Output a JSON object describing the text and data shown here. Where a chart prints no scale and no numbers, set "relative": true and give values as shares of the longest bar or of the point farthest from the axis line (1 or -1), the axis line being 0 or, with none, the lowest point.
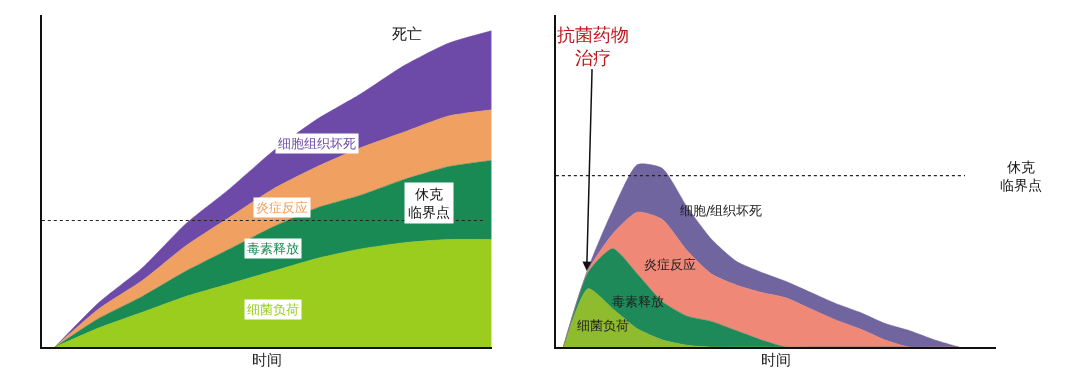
{
  "chart_data": [
    {
      "type": "area",
      "stacked": true,
      "relative": true,
      "xlabel": "时间",
      "categories": [
        null,
        null,
        null,
        null,
        null,
        null,
        null,
        null,
        null,
        null,
        null
      ],
      "series": [
        {
          "name": "细菌负荷",
          "color": "#9acd1e",
          "values": [
            0,
            0.06,
            0.11,
            0.16,
            0.2,
            0.24,
            0.28,
            0.31,
            0.33,
            0.34,
            0.34
          ]
        },
        {
          "name": "毒素释放",
          "color": "#1a8a55",
          "values": [
            0,
            0.03,
            0.05,
            0.08,
            0.11,
            0.14,
            0.16,
            0.17,
            0.2,
            0.23,
            0.25
          ]
        },
        {
          "name": "炎症反应",
          "color": "#f0a060",
          "values": [
            0,
            0.03,
            0.05,
            0.08,
            0.1,
            0.12,
            0.13,
            0.15,
            0.15,
            0.16,
            0.16
          ]
        },
        {
          "name": "细胞组织坏死",
          "color": "#6e4aa8",
          "values": [
            0,
            0.02,
            0.04,
            0.07,
            0.09,
            0.12,
            0.15,
            0.17,
            0.21,
            0.23,
            0.25
          ]
        }
      ],
      "ref_lines": [
        {
          "axis": "y",
          "value": 0.4,
          "label": "休克临界点",
          "line_style": "dotted"
        }
      ],
      "annotations": [
        "死亡"
      ]
    },
    {
      "type": "area",
      "stacked": true,
      "relative": true,
      "xlabel": "时间",
      "categories": [
        null,
        null,
        null,
        null,
        null,
        null,
        null,
        null,
        null,
        null,
        null,
        null,
        null,
        null,
        null,
        null,
        null
      ],
      "series": [
        {
          "name": "细菌负荷",
          "color": "#8fbb2e",
          "values": [
            0,
            0.32,
            0.21,
            0.1,
            0.04,
            0.01,
            0,
            0,
            0,
            0,
            0,
            0,
            0,
            0,
            0,
            0,
            0
          ]
        },
        {
          "name": "毒素释放",
          "color": "#1e8a5a",
          "values": [
            0,
            0.09,
            0.33,
            0.3,
            0.21,
            0.16,
            0.14,
            0.09,
            0.04,
            0,
            0,
            0,
            0,
            0,
            0,
            0,
            0
          ]
        },
        {
          "name": "炎症反应",
          "color": "#f08878",
          "values": [
            0,
            0.01,
            0.08,
            0.34,
            0.45,
            0.36,
            0.26,
            0.25,
            0.26,
            0.27,
            0.21,
            0.15,
            0.1,
            0.04,
            0,
            0,
            0
          ]
        },
        {
          "name": "细胞/组织坏死",
          "color": "#70659e",
          "values": [
            0,
            0.01,
            0.13,
            0.26,
            0.28,
            0.24,
            0.19,
            0.13,
            0.11,
            0.09,
            0.09,
            0.09,
            0.09,
            0.09,
            0.09,
            0.04,
            0
          ]
        }
      ],
      "ref_lines": [
        {
          "axis": "y",
          "value": 0.94,
          "label": "休克临界点",
          "line_style": "dotted"
        }
      ],
      "annotations": [
        "抗菌药物治疗"
      ]
    }
  ]
}
